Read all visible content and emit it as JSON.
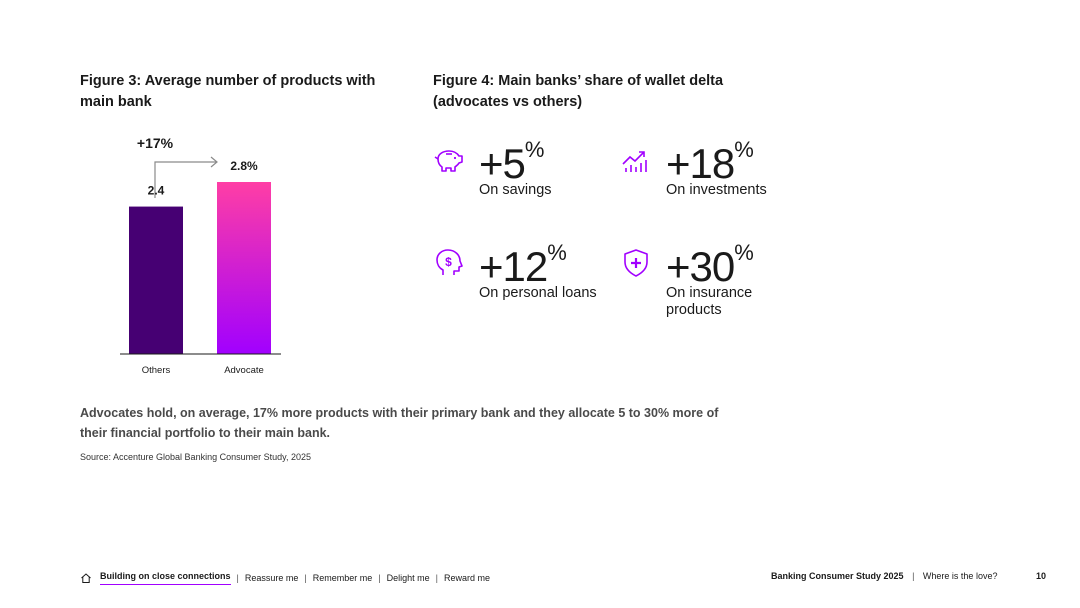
{
  "figure3": {
    "title": "Figure 3: Average number of products with main bank",
    "delta_label": "+17%",
    "chart_data": {
      "type": "bar",
      "categories": [
        "Others",
        "Advocate"
      ],
      "values": [
        2.4,
        2.8
      ],
      "value_labels": [
        "2.4",
        "2.8%"
      ],
      "title": "Figure 3: Average number of products with main bank",
      "xlabel": "",
      "ylabel": "",
      "ylim": [
        0,
        2.8
      ],
      "grid": false,
      "colors": {
        "Others": "#460073",
        "Advocate": [
          "#ff3ea5",
          "#a100ff"
        ]
      }
    }
  },
  "figure4": {
    "title": "Figure 4: Main banks’ share of wallet delta (advocates vs others)",
    "accent_color": "#a100ff",
    "stats": [
      {
        "icon": "piggy-bank-icon",
        "value": "+5",
        "unit": "%",
        "label": "On savings"
      },
      {
        "icon": "chart-growth-icon",
        "value": "+18",
        "unit": "%",
        "label": "On investments"
      },
      {
        "icon": "head-dollar-icon",
        "value": "+12",
        "unit": "%",
        "label": "On personal loans"
      },
      {
        "icon": "shield-plus-icon",
        "value": "+30",
        "unit": "%",
        "label": "On insurance products"
      }
    ]
  },
  "caption": "Advocates hold, on average, 17% more products with their primary bank and they allocate 5 to 30% more of their financial portfolio to their main bank.",
  "source": "Source: Accenture Global Banking Consumer Study, 2025",
  "footer": {
    "nav": [
      "Building on close connections",
      "Reassure me",
      "Remember me",
      "Delight me",
      "Reward me"
    ],
    "separator": "|",
    "study": "Banking Consumer Study 2025",
    "subtitle": "Where is the love?",
    "page": "10"
  }
}
